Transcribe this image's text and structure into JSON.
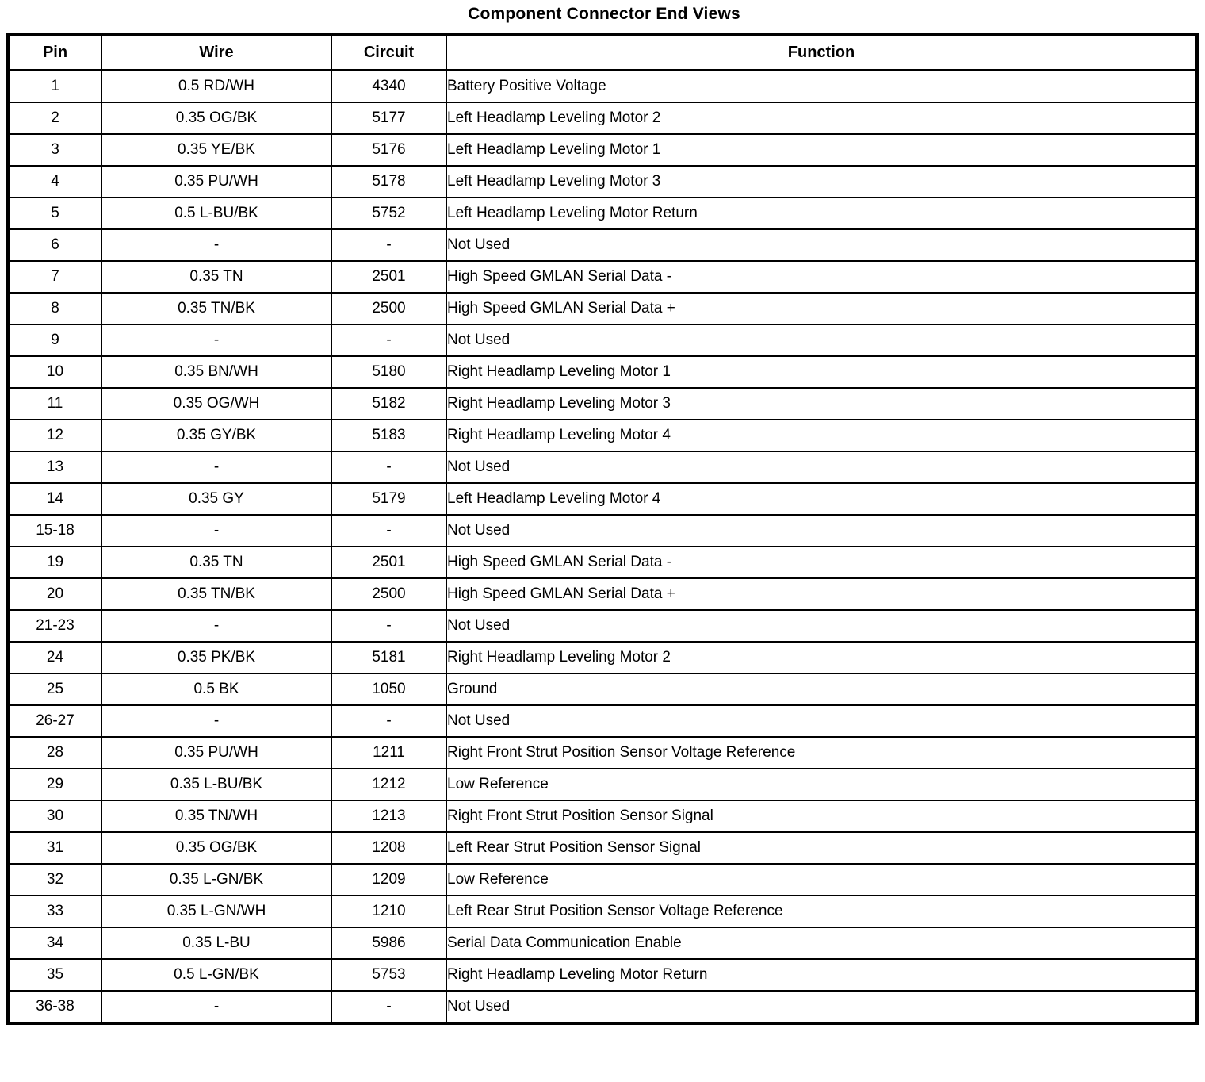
{
  "title": "Component Connector End Views",
  "table": {
    "headers": [
      "Pin",
      "Wire",
      "Circuit",
      "Function"
    ],
    "rows": [
      [
        "1",
        "0.5 RD/WH",
        "4340",
        "Battery Positive Voltage"
      ],
      [
        "2",
        "0.35 OG/BK",
        "5177",
        "Left Headlamp Leveling Motor 2"
      ],
      [
        "3",
        "0.35 YE/BK",
        "5176",
        "Left Headlamp Leveling Motor 1"
      ],
      [
        "4",
        "0.35 PU/WH",
        "5178",
        "Left Headlamp Leveling Motor 3"
      ],
      [
        "5",
        "0.5 L-BU/BK",
        "5752",
        "Left Headlamp Leveling Motor Return"
      ],
      [
        "6",
        "-",
        "-",
        "Not Used"
      ],
      [
        "7",
        "0.35 TN",
        "2501",
        "High Speed GMLAN Serial Data -"
      ],
      [
        "8",
        "0.35 TN/BK",
        "2500",
        "High Speed GMLAN Serial Data +"
      ],
      [
        "9",
        "-",
        "-",
        "Not Used"
      ],
      [
        "10",
        "0.35 BN/WH",
        "5180",
        "Right Headlamp Leveling Motor 1"
      ],
      [
        "11",
        "0.35 OG/WH",
        "5182",
        "Right Headlamp Leveling Motor 3"
      ],
      [
        "12",
        "0.35 GY/BK",
        "5183",
        "Right Headlamp Leveling Motor 4"
      ],
      [
        "13",
        "-",
        "-",
        "Not Used"
      ],
      [
        "14",
        "0.35 GY",
        "5179",
        "Left Headlamp Leveling Motor 4"
      ],
      [
        "15-18",
        "-",
        "-",
        "Not Used"
      ],
      [
        "19",
        "0.35 TN",
        "2501",
        "High Speed GMLAN Serial Data -"
      ],
      [
        "20",
        "0.35 TN/BK",
        "2500",
        "High Speed GMLAN Serial Data +"
      ],
      [
        "21-23",
        "-",
        "-",
        "Not Used"
      ],
      [
        "24",
        "0.35 PK/BK",
        "5181",
        "Right Headlamp Leveling Motor 2"
      ],
      [
        "25",
        "0.5 BK",
        "1050",
        "Ground"
      ],
      [
        "26-27",
        "-",
        "-",
        "Not Used"
      ],
      [
        "28",
        "0.35 PU/WH",
        "1211",
        "Right Front Strut Position Sensor Voltage Reference"
      ],
      [
        "29",
        "0.35 L-BU/BK",
        "1212",
        "Low Reference"
      ],
      [
        "30",
        "0.35 TN/WH",
        "1213",
        "Right Front Strut Position Sensor Signal"
      ],
      [
        "31",
        "0.35 OG/BK",
        "1208",
        "Left Rear Strut Position Sensor Signal"
      ],
      [
        "32",
        "0.35 L-GN/BK",
        "1209",
        "Low Reference"
      ],
      [
        "33",
        "0.35 L-GN/WH",
        "1210",
        "Left Rear Strut Position Sensor Voltage Reference"
      ],
      [
        "34",
        "0.35 L-BU",
        "5986",
        "Serial Data Communication Enable"
      ],
      [
        "35",
        "0.5 L-GN/BK",
        "5753",
        "Right Headlamp Leveling Motor Return"
      ],
      [
        "36-38",
        "-",
        "-",
        "Not Used"
      ]
    ]
  }
}
